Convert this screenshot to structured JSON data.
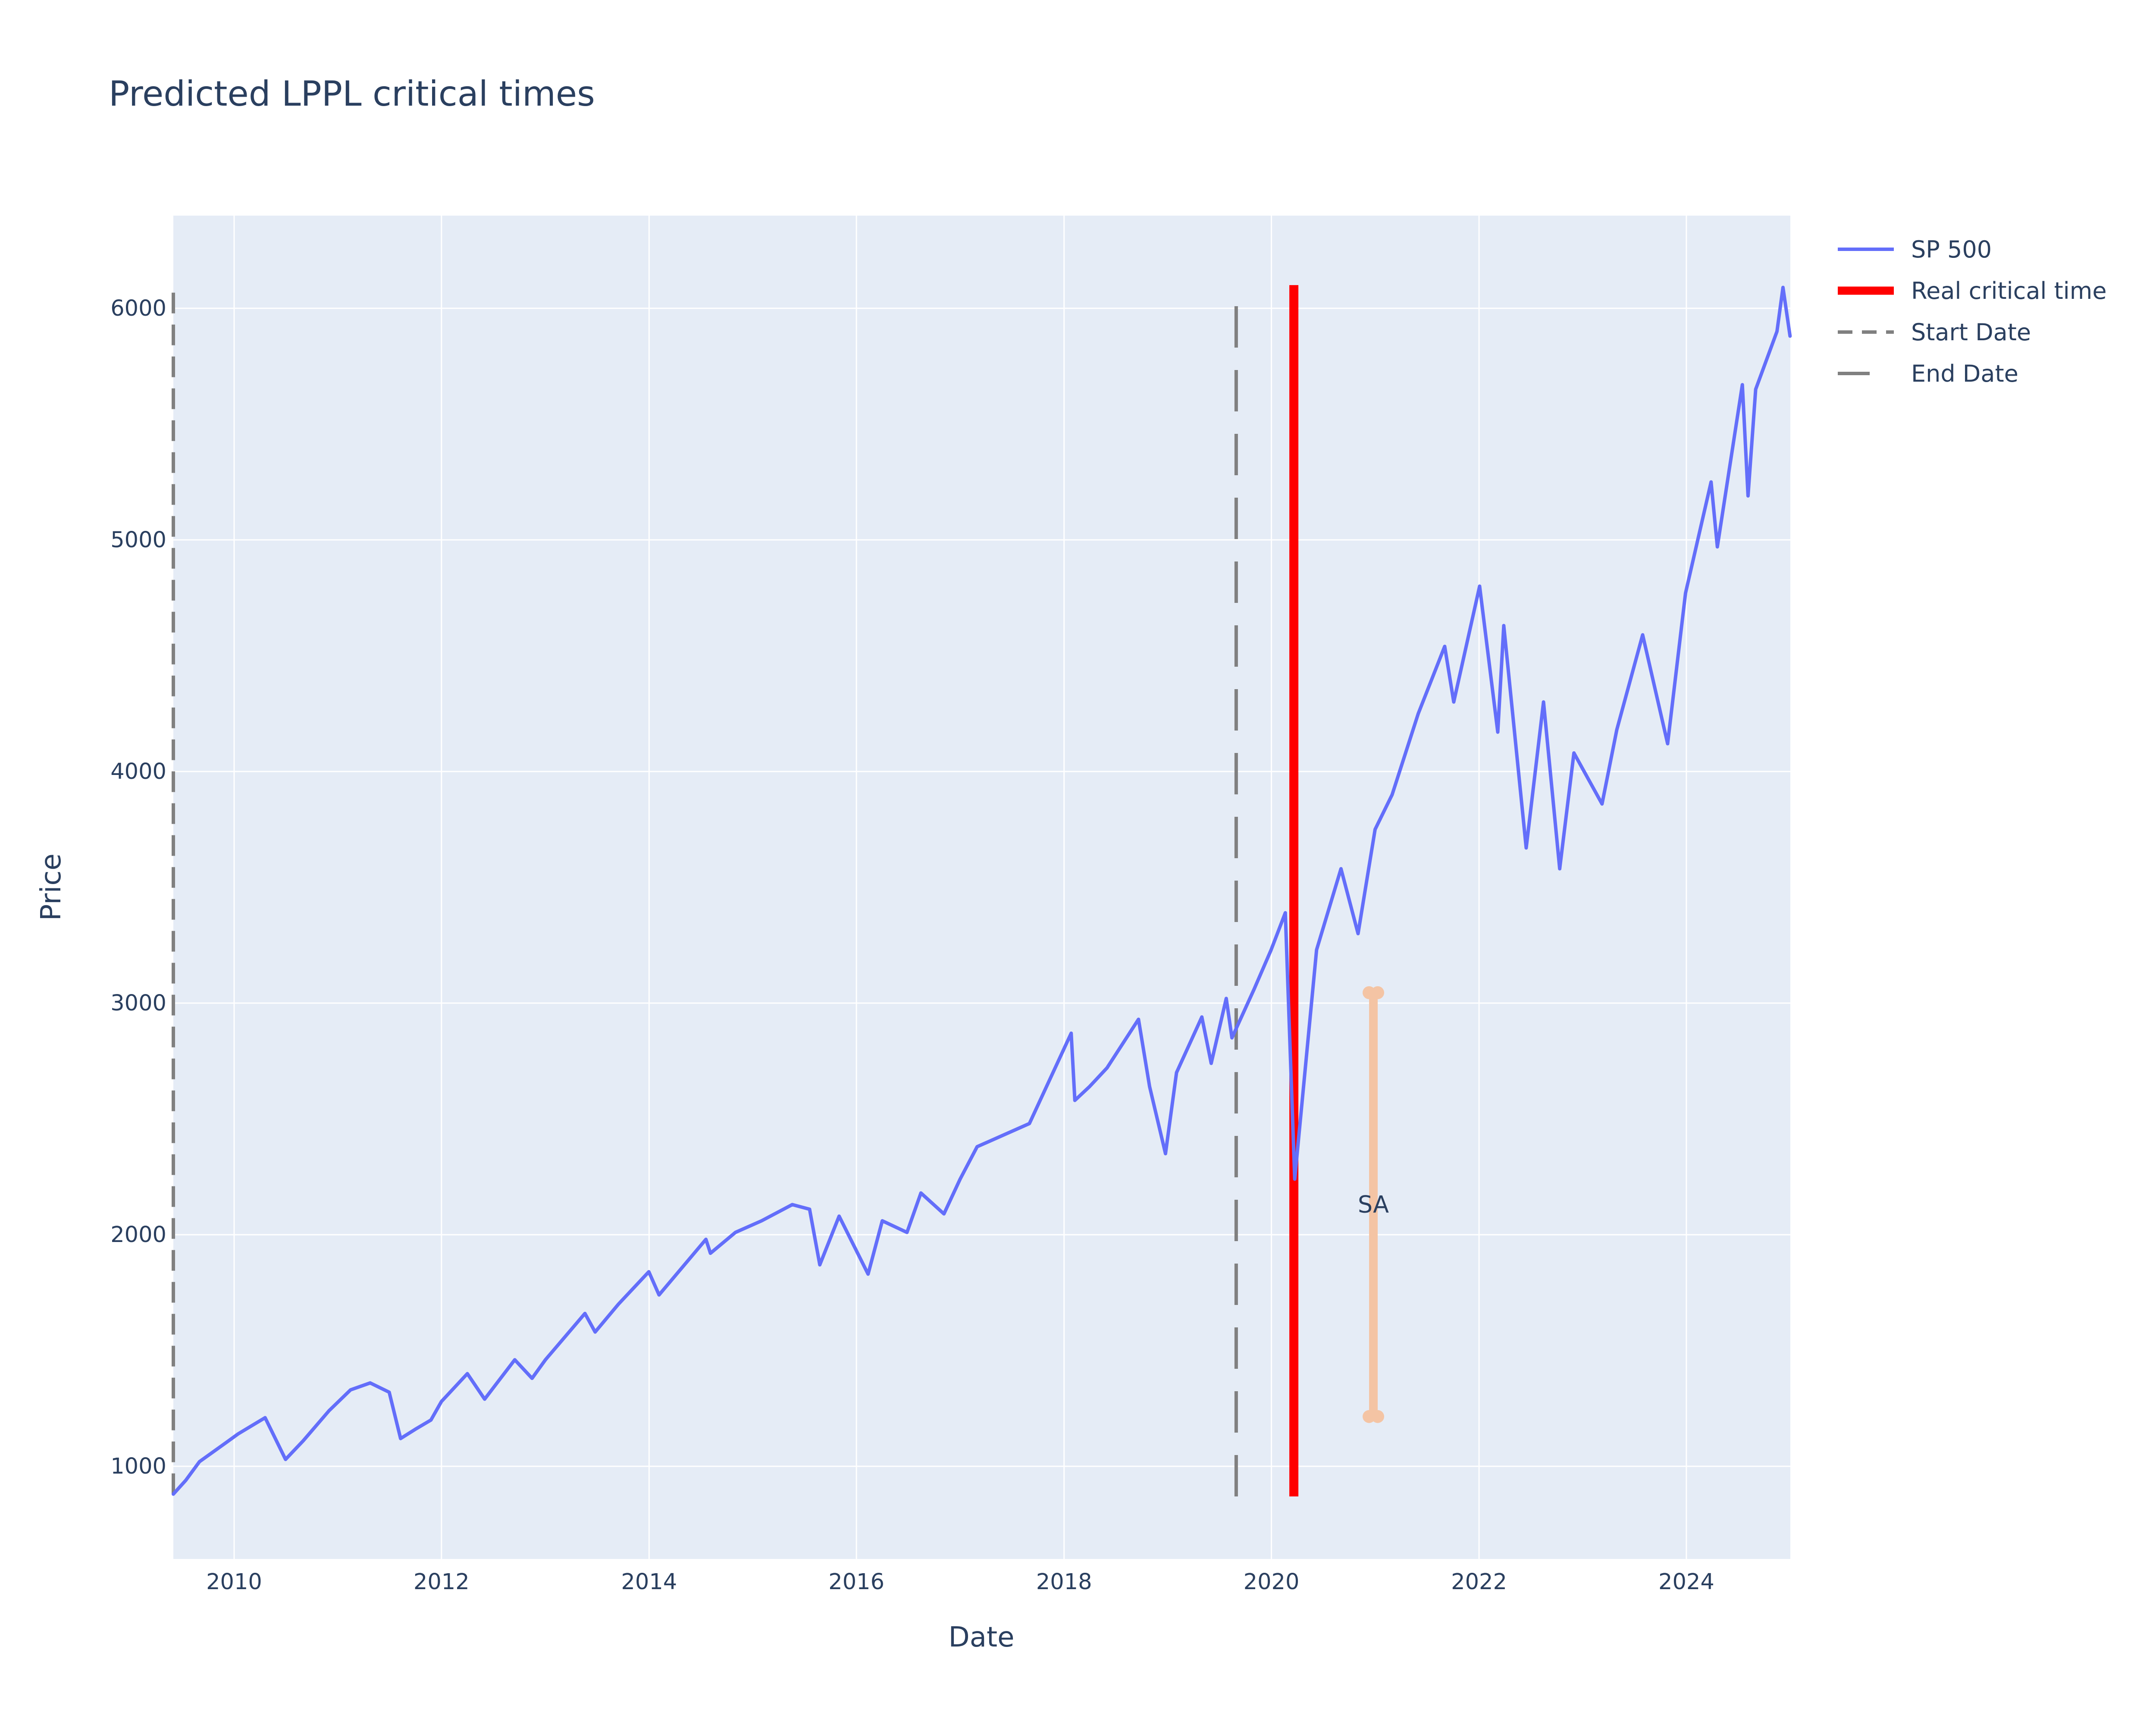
{
  "chart_data": {
    "type": "line",
    "title": "Predicted LPPL critical times",
    "xlabel": "Date",
    "ylabel": "Price",
    "xlim": [
      "2009-06-01",
      "2025-01-01"
    ],
    "ylim": [
      600,
      6400
    ],
    "x_tick_labels": [
      "2010",
      "2012",
      "2014",
      "2016",
      "2018",
      "2020",
      "2022",
      "2024"
    ],
    "y_tick_labels": [
      "1000",
      "2000",
      "3000",
      "4000",
      "5000",
      "6000"
    ],
    "y_tick_values": [
      1000,
      2000,
      3000,
      4000,
      5000,
      6000
    ],
    "grid": true,
    "legend_position": "top-right",
    "colors": {
      "plot_background": "#e5ecf6",
      "grid": "#ffffff",
      "sp500": "#636efa",
      "critical_time": "#ff0000",
      "reference_lines": "#808080",
      "prediction_range": "#f4c4a4",
      "text": "#2a3f5f"
    },
    "series": [
      {
        "name": "SP 500",
        "style": "solid",
        "x": [
          "2009-06-01",
          "2009-07-15",
          "2009-09-01",
          "2009-12-01",
          "2010-01-15",
          "2010-04-20",
          "2010-07-01",
          "2010-09-01",
          "2010-12-01",
          "2011-02-15",
          "2011-04-25",
          "2011-07-01",
          "2011-08-10",
          "2011-10-01",
          "2011-11-25",
          "2012-01-01",
          "2012-04-01",
          "2012-06-01",
          "2012-09-15",
          "2012-11-15",
          "2013-01-01",
          "2013-05-20",
          "2013-06-25",
          "2013-09-15",
          "2013-12-31",
          "2014-02-05",
          "2014-07-20",
          "2014-08-05",
          "2014-11-01",
          "2015-02-01",
          "2015-05-20",
          "2015-07-20",
          "2015-08-25",
          "2015-11-01",
          "2016-02-11",
          "2016-04-01",
          "2016-06-27",
          "2016-08-15",
          "2016-11-04",
          "2016-12-31",
          "2017-03-01",
          "2017-06-01",
          "2017-09-01",
          "2018-01-26",
          "2018-02-08",
          "2018-04-01",
          "2018-06-01",
          "2018-09-20",
          "2018-10-29",
          "2018-12-24",
          "2019-02-01",
          "2019-05-01",
          "2019-06-03",
          "2019-07-26",
          "2019-08-15",
          "2019-11-01",
          "2019-12-31",
          "2020-02-19",
          "2020-03-23",
          "2020-06-08",
          "2020-09-02",
          "2020-11-01",
          "2020-12-31",
          "2021-03-01",
          "2021-06-01",
          "2021-09-02",
          "2021-10-04",
          "2022-01-03",
          "2022-03-08",
          "2022-03-29",
          "2022-06-16",
          "2022-08-16",
          "2022-10-12",
          "2022-12-01",
          "2023-03-10",
          "2023-05-01",
          "2023-07-31",
          "2023-10-27",
          "2023-12-29",
          "2024-03-28",
          "2024-04-19",
          "2024-07-16",
          "2024-08-05",
          "2024-09-01",
          "2024-11-15",
          "2024-12-06",
          "2024-12-31"
        ],
        "y": [
          880,
          940,
          1020,
          1100,
          1140,
          1210,
          1030,
          1110,
          1240,
          1330,
          1360,
          1320,
          1120,
          1160,
          1200,
          1280,
          1400,
          1290,
          1460,
          1380,
          1460,
          1660,
          1580,
          1700,
          1840,
          1740,
          1980,
          1920,
          2010,
          2060,
          2130,
          2110,
          1870,
          2080,
          1830,
          2060,
          2010,
          2180,
          2090,
          2240,
          2380,
          2430,
          2480,
          2870,
          2580,
          2640,
          2720,
          2930,
          2640,
          2350,
          2700,
          2940,
          2740,
          3020,
          2850,
          3060,
          3230,
          3390,
          2240,
          3230,
          3580,
          3300,
          3750,
          3900,
          4250,
          4540,
          4300,
          4800,
          4170,
          4630,
          3670,
          4300,
          3580,
          4080,
          3860,
          4180,
          4590,
          4120,
          4770,
          5250,
          4970,
          5670,
          5190,
          5650,
          5900,
          6090,
          5880
        ]
      }
    ],
    "vertical_lines": [
      {
        "name": "Real critical time",
        "x": "2020-03-20",
        "y_from": 870,
        "y_to": 6100,
        "style": "solid"
      },
      {
        "name": "Start Date",
        "x": "2009-06-01",
        "y_from": 880,
        "y_to": 6100,
        "style": "dashed"
      },
      {
        "name": "End Date",
        "x": "2019-08-30",
        "y_from": 870,
        "y_to": 6100,
        "style": "dashed"
      }
    ],
    "prediction_range": {
      "label": "SA",
      "x": "2020-12-25",
      "y_from": 1215,
      "y_to": 3045
    },
    "legend": [
      "SP 500",
      "Real critical time",
      "Start Date",
      "End Date"
    ]
  }
}
